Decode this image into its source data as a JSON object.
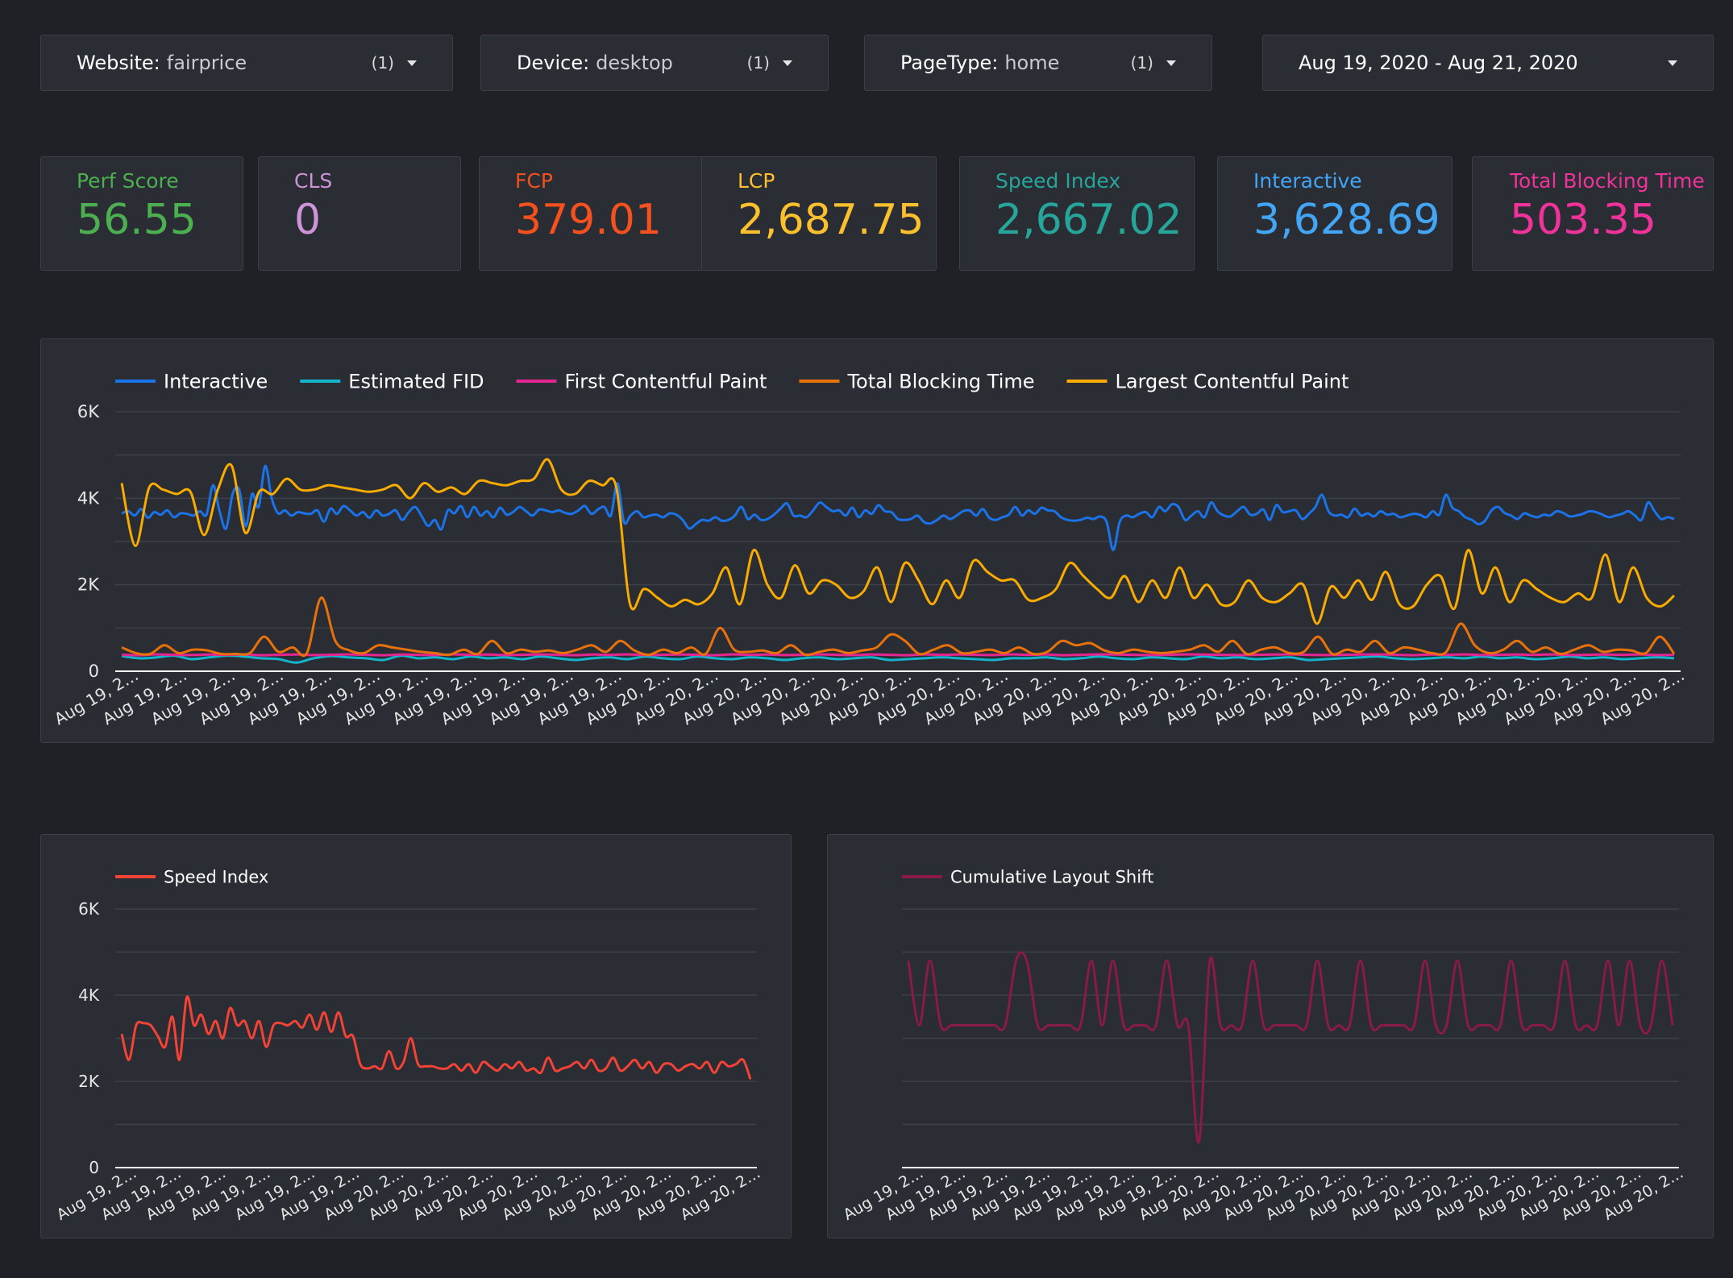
{
  "filters": [
    {
      "label": "Website:",
      "value": "fairprice",
      "count": "(1)"
    },
    {
      "label": "Device:",
      "value": "desktop",
      "count": "(1)"
    },
    {
      "label": "PageType:",
      "value": "home",
      "count": "(1)"
    }
  ],
  "date_range": {
    "label": "Aug 19, 2020 - Aug 21, 2020"
  },
  "colors": {
    "background": "#202126",
    "panel": "#2b2d34",
    "interactive": "#1a73e8",
    "estimated_fid": "#12b5cb",
    "first_contentful_paint": "#e52592",
    "total_blocking_time": "#e8710a",
    "largest_contentful_paint": "#f9ab00",
    "speed_index": "#f44336",
    "cls": "#8b1a4a"
  },
  "scorecards": [
    {
      "label": "Perf Score",
      "value": "56.55",
      "color": "#4caf50"
    },
    {
      "label": "CLS",
      "value": "0",
      "color": "#ce93d8"
    },
    {
      "label": "FCP",
      "value": "379.01",
      "color": "#f4511e"
    },
    {
      "label": "LCP",
      "value": "2,687.75",
      "color": "#fbc02d"
    },
    {
      "label": "Speed Index",
      "value": "2,667.02",
      "color": "#26a69a"
    },
    {
      "label": "Interactive",
      "value": "3,628.69",
      "color": "#42a5f5"
    },
    {
      "label": "Total Blocking Time",
      "value": "503.35",
      "color": "#f0339a"
    }
  ],
  "chart_data": [
    {
      "type": "line",
      "title": "",
      "legend": "top-left",
      "ylim": [
        0,
        6000
      ],
      "y_ticks": [
        "0",
        "2K",
        "4K",
        "6K"
      ],
      "x_tick_labels": [
        "Aug 19, 2…",
        "Aug 19, 2…",
        "Aug 19, 2…",
        "Aug 19, 2…",
        "Aug 19, 2…",
        "Aug 19, 2…",
        "Aug 19, 2…",
        "Aug 19, 2…",
        "Aug 19, 2…",
        "Aug 19, 2…",
        "Aug 19, 2…",
        "Aug 20, 2…",
        "Aug 20, 2…",
        "Aug 20, 2…",
        "Aug 20, 2…",
        "Aug 20, 2…",
        "Aug 20, 2…",
        "Aug 20, 2…",
        "Aug 20, 2…",
        "Aug 20, 2…",
        "Aug 20, 2…",
        "Aug 20, 2…",
        "Aug 20, 2…",
        "Aug 20, 2…",
        "Aug 20, 2…",
        "Aug 20, 2…",
        "Aug 20, 2…",
        "Aug 20, 2…",
        "Aug 20, 2…",
        "Aug 20, 2…",
        "Aug 20, 2…",
        "Aug 20, 2…",
        "Aug 20, 2…"
      ],
      "grid": true,
      "series": [
        {
          "name": "Interactive",
          "color": "#1a73e8",
          "values": [
            3650,
            3700,
            3600,
            3750,
            3550,
            3680,
            3620,
            3720,
            3560,
            3650,
            3640,
            3600,
            3700,
            3620,
            4300,
            3700,
            3300,
            4100,
            4200,
            3350,
            4100,
            3800,
            4750,
            4000,
            3650,
            3720,
            3600,
            3680,
            3650,
            3640,
            3720,
            3460,
            3760,
            3640,
            3820,
            3720,
            3600,
            3680,
            3550,
            3720,
            3600,
            3640,
            3720,
            3500,
            3680,
            3800,
            3580,
            3360,
            3500,
            3280,
            3720,
            3650,
            3820,
            3560,
            3800,
            3600,
            3700,
            3560,
            3780,
            3620,
            3680,
            3800,
            3700,
            3600,
            3740,
            3720,
            3680,
            3720,
            3660,
            3640,
            3720,
            3820,
            3640,
            3740,
            3800,
            3600,
            4350,
            3450,
            3600,
            3700,
            3560,
            3600,
            3620,
            3560,
            3650,
            3620,
            3500,
            3300,
            3400,
            3500,
            3480,
            3560,
            3480,
            3500,
            3600,
            3800,
            3520,
            3620,
            3500,
            3520,
            3620,
            3760,
            3880,
            3600,
            3600,
            3560,
            3720,
            3900,
            3800,
            3700,
            3720,
            3600,
            3780,
            3560,
            3720,
            3640,
            3840,
            3700,
            3680,
            3520,
            3500,
            3520,
            3600,
            3450,
            3420,
            3500,
            3600,
            3520,
            3600,
            3700,
            3720,
            3600,
            3750,
            3550,
            3500,
            3560,
            3620,
            3800,
            3600,
            3720,
            3640,
            3780,
            3720,
            3700,
            3560,
            3500,
            3480,
            3500,
            3550,
            3520,
            3580,
            3450,
            2800,
            3450,
            3600,
            3560,
            3640,
            3680,
            3560,
            3800,
            3700,
            3860,
            3800,
            3500,
            3600,
            3700,
            3560,
            3900,
            3700,
            3600,
            3580,
            3700,
            3800,
            3620,
            3640,
            3740,
            3500,
            3840,
            3680,
            3700,
            3720,
            3520,
            3640,
            3800,
            4080,
            3700,
            3600,
            3620,
            3560,
            3760,
            3600,
            3650,
            3580,
            3700,
            3620,
            3640,
            3560,
            3600,
            3640,
            3620,
            3560,
            3700,
            3620,
            4080,
            3780,
            3700,
            3560,
            3500,
            3400,
            3480,
            3720,
            3800,
            3660,
            3600,
            3520,
            3650,
            3600,
            3560,
            3620,
            3600,
            3700,
            3660,
            3580,
            3600,
            3640,
            3700,
            3680,
            3620,
            3560,
            3600,
            3640,
            3700,
            3600,
            3500,
            3900,
            3700,
            3520,
            3560,
            3520
          ]
        },
        {
          "name": "Estimated FID",
          "color": "#12b5cb",
          "values": [
            350,
            300,
            320,
            360,
            280,
            320,
            360,
            340,
            300,
            280,
            200,
            300,
            350,
            320,
            300,
            260,
            360,
            300,
            320,
            280,
            340,
            300,
            320,
            280,
            340,
            300,
            260,
            300,
            320,
            280,
            340,
            300,
            280,
            340,
            300,
            280,
            320,
            300,
            260,
            300,
            320,
            280,
            300,
            320,
            260,
            280,
            300,
            320,
            300,
            280,
            260,
            300,
            300,
            320,
            280,
            300,
            340,
            300,
            280,
            320,
            300,
            280,
            340,
            300,
            320,
            280,
            300,
            320,
            260,
            280,
            300,
            320,
            340,
            300,
            280,
            300,
            320,
            300,
            340,
            300,
            320,
            280,
            300,
            340,
            300,
            320,
            280,
            300,
            320,
            300
          ]
        },
        {
          "name": "First Contentful Paint",
          "color": "#e52592",
          "values": [
            380,
            370,
            390,
            380,
            375,
            385,
            380,
            390,
            370,
            380,
            385,
            375,
            380,
            390,
            380,
            370,
            385,
            380,
            375,
            390,
            380,
            385,
            375,
            380,
            390,
            380,
            370,
            385,
            380,
            390,
            375,
            380,
            385,
            380,
            370,
            390,
            380,
            385,
            375,
            380,
            390,
            380,
            375,
            385,
            380,
            370,
            390,
            380,
            385,
            380,
            375,
            390,
            380,
            385,
            370,
            380,
            390,
            385,
            380,
            375,
            380,
            390,
            385,
            380,
            375,
            380,
            385,
            390,
            380,
            375,
            380,
            385,
            390,
            380,
            370,
            385,
            380,
            390,
            375,
            380,
            385,
            380,
            390,
            375,
            380,
            385,
            380,
            390,
            375,
            380
          ]
        },
        {
          "name": "Total Blocking Time",
          "color": "#e8710a",
          "values": [
            550,
            420,
            400,
            600,
            420,
            500,
            480,
            400,
            400,
            420,
            800,
            450,
            550,
            420,
            1700,
            700,
            480,
            420,
            600,
            550,
            500,
            450,
            420,
            380,
            500,
            400,
            700,
            420,
            500,
            450,
            480,
            420,
            500,
            600,
            450,
            700,
            480,
            380,
            500,
            420,
            550,
            400,
            1000,
            500,
            450,
            480,
            420,
            600,
            380,
            450,
            500,
            420,
            480,
            550,
            850,
            700,
            400,
            500,
            600,
            420,
            450,
            500,
            420,
            550,
            400,
            450,
            700,
            600,
            650,
            480,
            420,
            500,
            450,
            420,
            450,
            500,
            600,
            450,
            700,
            400,
            500,
            550,
            420,
            450,
            800,
            400,
            500,
            450,
            700,
            420,
            550,
            500,
            420,
            450,
            1100,
            600,
            420,
            500,
            700,
            450,
            550,
            400,
            500,
            600,
            450,
            500,
            480,
            420,
            800,
            400
          ]
        },
        {
          "name": "Largest Contentful Paint",
          "color": "#f9ab00",
          "values": [
            4350,
            2900,
            4250,
            4200,
            4100,
            4150,
            3150,
            4200,
            4750,
            3200,
            4150,
            4100,
            4450,
            4200,
            4200,
            4300,
            4250,
            4200,
            4150,
            4200,
            4300,
            4000,
            4350,
            4150,
            4250,
            4100,
            4400,
            4350,
            4300,
            4400,
            4450,
            4900,
            4200,
            4100,
            4400,
            4300,
            4250,
            1550,
            1900,
            1700,
            1500,
            1650,
            1550,
            1800,
            2400,
            1550,
            2800,
            2000,
            1700,
            2450,
            1800,
            2100,
            2000,
            1700,
            1850,
            2400,
            1600,
            2500,
            2100,
            1550,
            2100,
            1700,
            2550,
            2300,
            2100,
            2100,
            1650,
            1700,
            1900,
            2500,
            2200,
            1900,
            1700,
            2200,
            1600,
            2100,
            1700,
            2400,
            1700,
            2000,
            1550,
            1600,
            2100,
            1700,
            1600,
            1800,
            2000,
            1100,
            1950,
            1700,
            2100,
            1650,
            2300,
            1550,
            1500,
            2000,
            2200,
            1450,
            2800,
            1800,
            2400,
            1600,
            2100,
            1900,
            1700,
            1600,
            1800,
            1700,
            2700,
            1600,
            2400,
            1700,
            1500,
            1750
          ]
        }
      ]
    },
    {
      "type": "line",
      "title": "",
      "legend": "top-left",
      "ylim": [
        0,
        6000
      ],
      "y_ticks": [
        "0",
        "2K",
        "4K",
        "6K"
      ],
      "x_tick_labels": [
        "Aug 19, 2…",
        "Aug 19, 2…",
        "Aug 19, 2…",
        "Aug 19, 2…",
        "Aug 19, 2…",
        "Aug 19, 2…",
        "Aug 20, 2…",
        "Aug 20, 2…",
        "Aug 20, 2…",
        "Aug 20, 2…",
        "Aug 20, 2…",
        "Aug 20, 2…",
        "Aug 20, 2…",
        "Aug 20, 2…",
        "Aug 20, 2…"
      ],
      "grid": true,
      "series": [
        {
          "name": "Speed Index",
          "color": "#f44336",
          "values": [
            3100,
            2500,
            3300,
            3350,
            3300,
            3050,
            2800,
            3500,
            2500,
            3950,
            3300,
            3550,
            3100,
            3400,
            3000,
            3700,
            3300,
            3400,
            3000,
            3400,
            2800,
            3300,
            3350,
            3300,
            3400,
            3250,
            3550,
            3200,
            3600,
            3150,
            3600,
            3050,
            3050,
            2400,
            2300,
            2350,
            2300,
            2700,
            2300,
            2450,
            3000,
            2400,
            2350,
            2350,
            2300,
            2300,
            2400,
            2250,
            2400,
            2200,
            2450,
            2350,
            2250,
            2400,
            2300,
            2450,
            2250,
            2300,
            2200,
            2550,
            2250,
            2300,
            2350,
            2450,
            2300,
            2500,
            2250,
            2300,
            2550,
            2250,
            2350,
            2500,
            2300,
            2450,
            2200,
            2400,
            2400,
            2250,
            2350,
            2400,
            2300,
            2450,
            2200,
            2450,
            2350,
            2400,
            2500,
            2050
          ]
        }
      ]
    },
    {
      "type": "line",
      "title": "",
      "legend": "top-left",
      "x_tick_labels": [
        "Aug 19, 2…",
        "Aug 19, 2…",
        "Aug 19, 2…",
        "Aug 19, 2…",
        "Aug 19, 2…",
        "Aug 19, 2…",
        "Aug 19, 2…",
        "Aug 20, 2…",
        "Aug 20, 2…",
        "Aug 20, 2…",
        "Aug 20, 2…",
        "Aug 20, 2…",
        "Aug 20, 2…",
        "Aug 20, 2…",
        "Aug 20, 2…",
        "Aug 20, 2…",
        "Aug 20, 2…",
        "Aug 20, 2…",
        "Aug 20, 2…"
      ],
      "grid": true,
      "series": [
        {
          "name": "Cumulative Layout Shift",
          "color": "#8b1a4a",
          "values": [
            0.8,
            0.55,
            0.8,
            0.55,
            0.55,
            0.55,
            0.55,
            0.55,
            0.55,
            0.55,
            0.8,
            0.8,
            0.55,
            0.55,
            0.55,
            0.55,
            0.55,
            0.8,
            0.55,
            0.8,
            0.55,
            0.55,
            0.55,
            0.55,
            0.8,
            0.55,
            0.55,
            0.1,
            0.8,
            0.55,
            0.55,
            0.55,
            0.8,
            0.55,
            0.55,
            0.55,
            0.55,
            0.55,
            0.8,
            0.55,
            0.55,
            0.55,
            0.8,
            0.55,
            0.55,
            0.55,
            0.55,
            0.55,
            0.8,
            0.55,
            0.55,
            0.8,
            0.55,
            0.55,
            0.55,
            0.55,
            0.8,
            0.55,
            0.55,
            0.55,
            0.55,
            0.8,
            0.55,
            0.55,
            0.55,
            0.8,
            0.55,
            0.8,
            0.55,
            0.55,
            0.8,
            0.55
          ]
        }
      ]
    }
  ]
}
